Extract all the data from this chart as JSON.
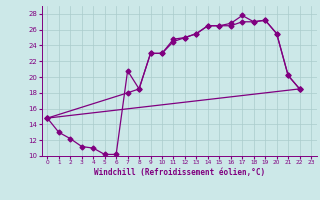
{
  "xlabel": "Windchill (Refroidissement éolien,°C)",
  "bg_color": "#cce8e8",
  "line_color": "#800080",
  "grid_color": "#aacccc",
  "xlim": [
    -0.5,
    23.5
  ],
  "ylim": [
    10,
    29
  ],
  "xticks": [
    0,
    1,
    2,
    3,
    4,
    5,
    6,
    7,
    8,
    9,
    10,
    11,
    12,
    13,
    14,
    15,
    16,
    17,
    18,
    19,
    20,
    21,
    22,
    23
  ],
  "yticks": [
    10,
    12,
    14,
    16,
    18,
    20,
    22,
    24,
    26,
    28
  ],
  "curve1_x": [
    0,
    1,
    2,
    3,
    4,
    5,
    6,
    7,
    8,
    9,
    10,
    11,
    12,
    13,
    14,
    15,
    16,
    17,
    18,
    19,
    20,
    21,
    22
  ],
  "curve1_y": [
    14.8,
    13.0,
    12.2,
    11.2,
    11.0,
    10.2,
    10.2,
    20.8,
    18.5,
    23.0,
    23.0,
    24.8,
    25.0,
    25.5,
    26.5,
    26.5,
    26.8,
    27.8,
    27.0,
    27.2,
    25.5,
    20.2,
    18.5
  ],
  "curve2_x": [
    0,
    7,
    8,
    9,
    10,
    11,
    12,
    13,
    14,
    15,
    16,
    17,
    18,
    19,
    20,
    21,
    22
  ],
  "curve2_y": [
    14.8,
    18.0,
    18.5,
    23.0,
    23.0,
    24.5,
    25.0,
    25.5,
    26.5,
    26.5,
    26.5,
    27.0,
    27.0,
    27.2,
    25.5,
    20.2,
    18.5
  ],
  "curve3_x": [
    0,
    22
  ],
  "curve3_y": [
    14.8,
    18.5
  ],
  "marker": "D",
  "markersize": 2.5,
  "linewidth": 0.9
}
